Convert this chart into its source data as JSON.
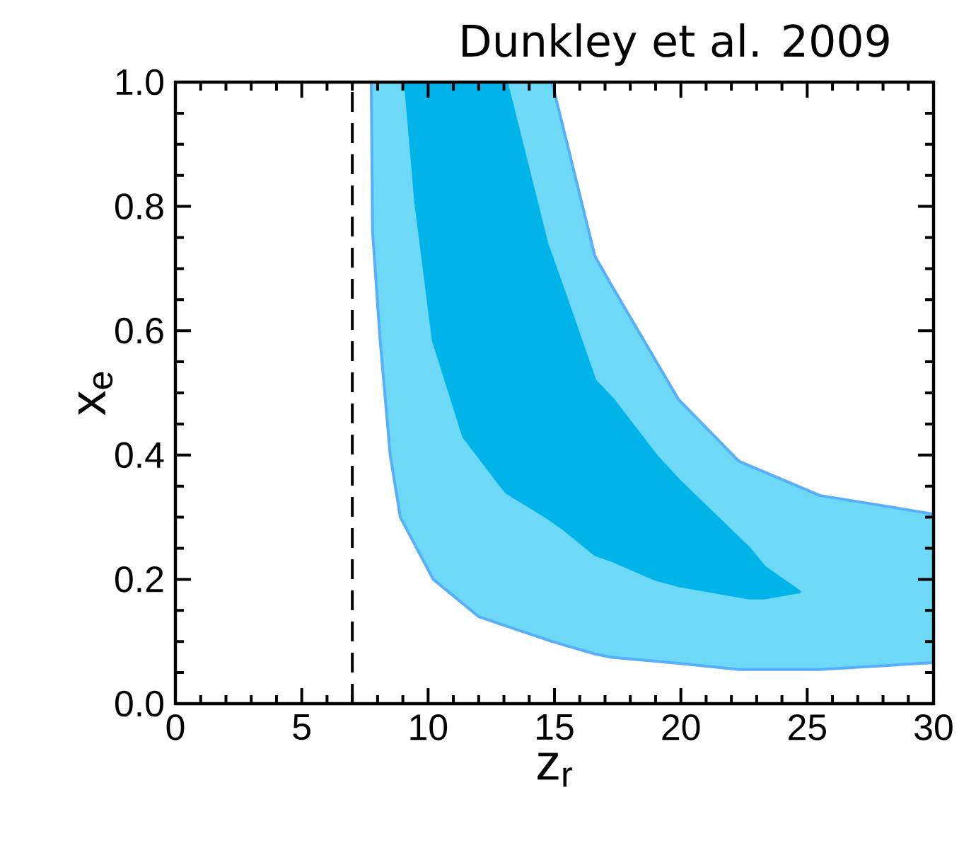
{
  "chart_data": {
    "type": "area",
    "title": "Dunkley et al. 2009",
    "xlabel": "z$_{r}$",
    "ylabel": "x$_{e}$",
    "series": [
      {
        "color": "#6dd9f7",
        "x": [
          7.75,
          7.8,
          8.1,
          8.5,
          8.9,
          10.2,
          12,
          14.9,
          16.6,
          17.2,
          19.9,
          22.3,
          25.5,
          30
        ],
        "values": [
          null,
          null,
          null,
          null,
          null,
          null,
          null,
          null,
          null,
          null,
          null,
          null,
          null,
          null
        ],
        "upper": [
          1.0,
          1.0,
          1.0,
          1.0,
          1.0,
          1.0,
          1.0,
          1.0,
          0.72,
          0.677,
          0.49,
          0.39,
          0.335,
          0.305
        ],
        "lower": [
          1.0,
          0.76,
          0.585,
          0.4,
          0.3,
          0.2,
          0.14,
          0.1,
          0.08,
          0.075,
          0.065,
          0.055,
          0.055,
          0.066
        ]
      },
      {
        "color": "#00b4ea",
        "x": [
          9.1,
          9.5,
          10.2,
          11.4,
          12.8,
          13.1,
          14.7,
          15.4,
          16.6,
          17.3,
          19,
          19.9,
          22.7,
          23.3,
          24.7
        ],
        "values": [
          null,
          null,
          null,
          null,
          null,
          null,
          null,
          null,
          null,
          null,
          null,
          null,
          null,
          null,
          null
        ],
        "upper": [
          1.0,
          1.0,
          1.0,
          1.0,
          1.0,
          1.0,
          0.74,
          0.66,
          0.52,
          0.49,
          0.4,
          0.36,
          0.25,
          0.22,
          0.18
        ],
        "lower": [
          1.0,
          0.81,
          0.585,
          0.43,
          0.355,
          0.34,
          0.3,
          0.28,
          0.24,
          0.23,
          0.2,
          0.19,
          0.17,
          0.17,
          0.18
        ]
      }
    ],
    "ref_lines": [
      {
        "axis": "x",
        "value": 7,
        "color": "#000000",
        "line_style": "dashed"
      }
    ],
    "xlim": [
      0,
      30
    ],
    "ylim": [
      0,
      1
    ],
    "xticks": [
      0,
      5,
      10,
      15,
      20,
      25,
      30
    ],
    "yticks": [
      {
        "value": 0,
        "label": "0.0"
      },
      {
        "value": 0.2,
        "label": "0.2"
      },
      {
        "value": 0.4,
        "label": "0.4"
      },
      {
        "value": 0.6,
        "label": "0.6"
      },
      {
        "value": 0.8,
        "label": "0.8"
      },
      {
        "value": 1,
        "label": "1.0"
      }
    ],
    "grid": false
  }
}
